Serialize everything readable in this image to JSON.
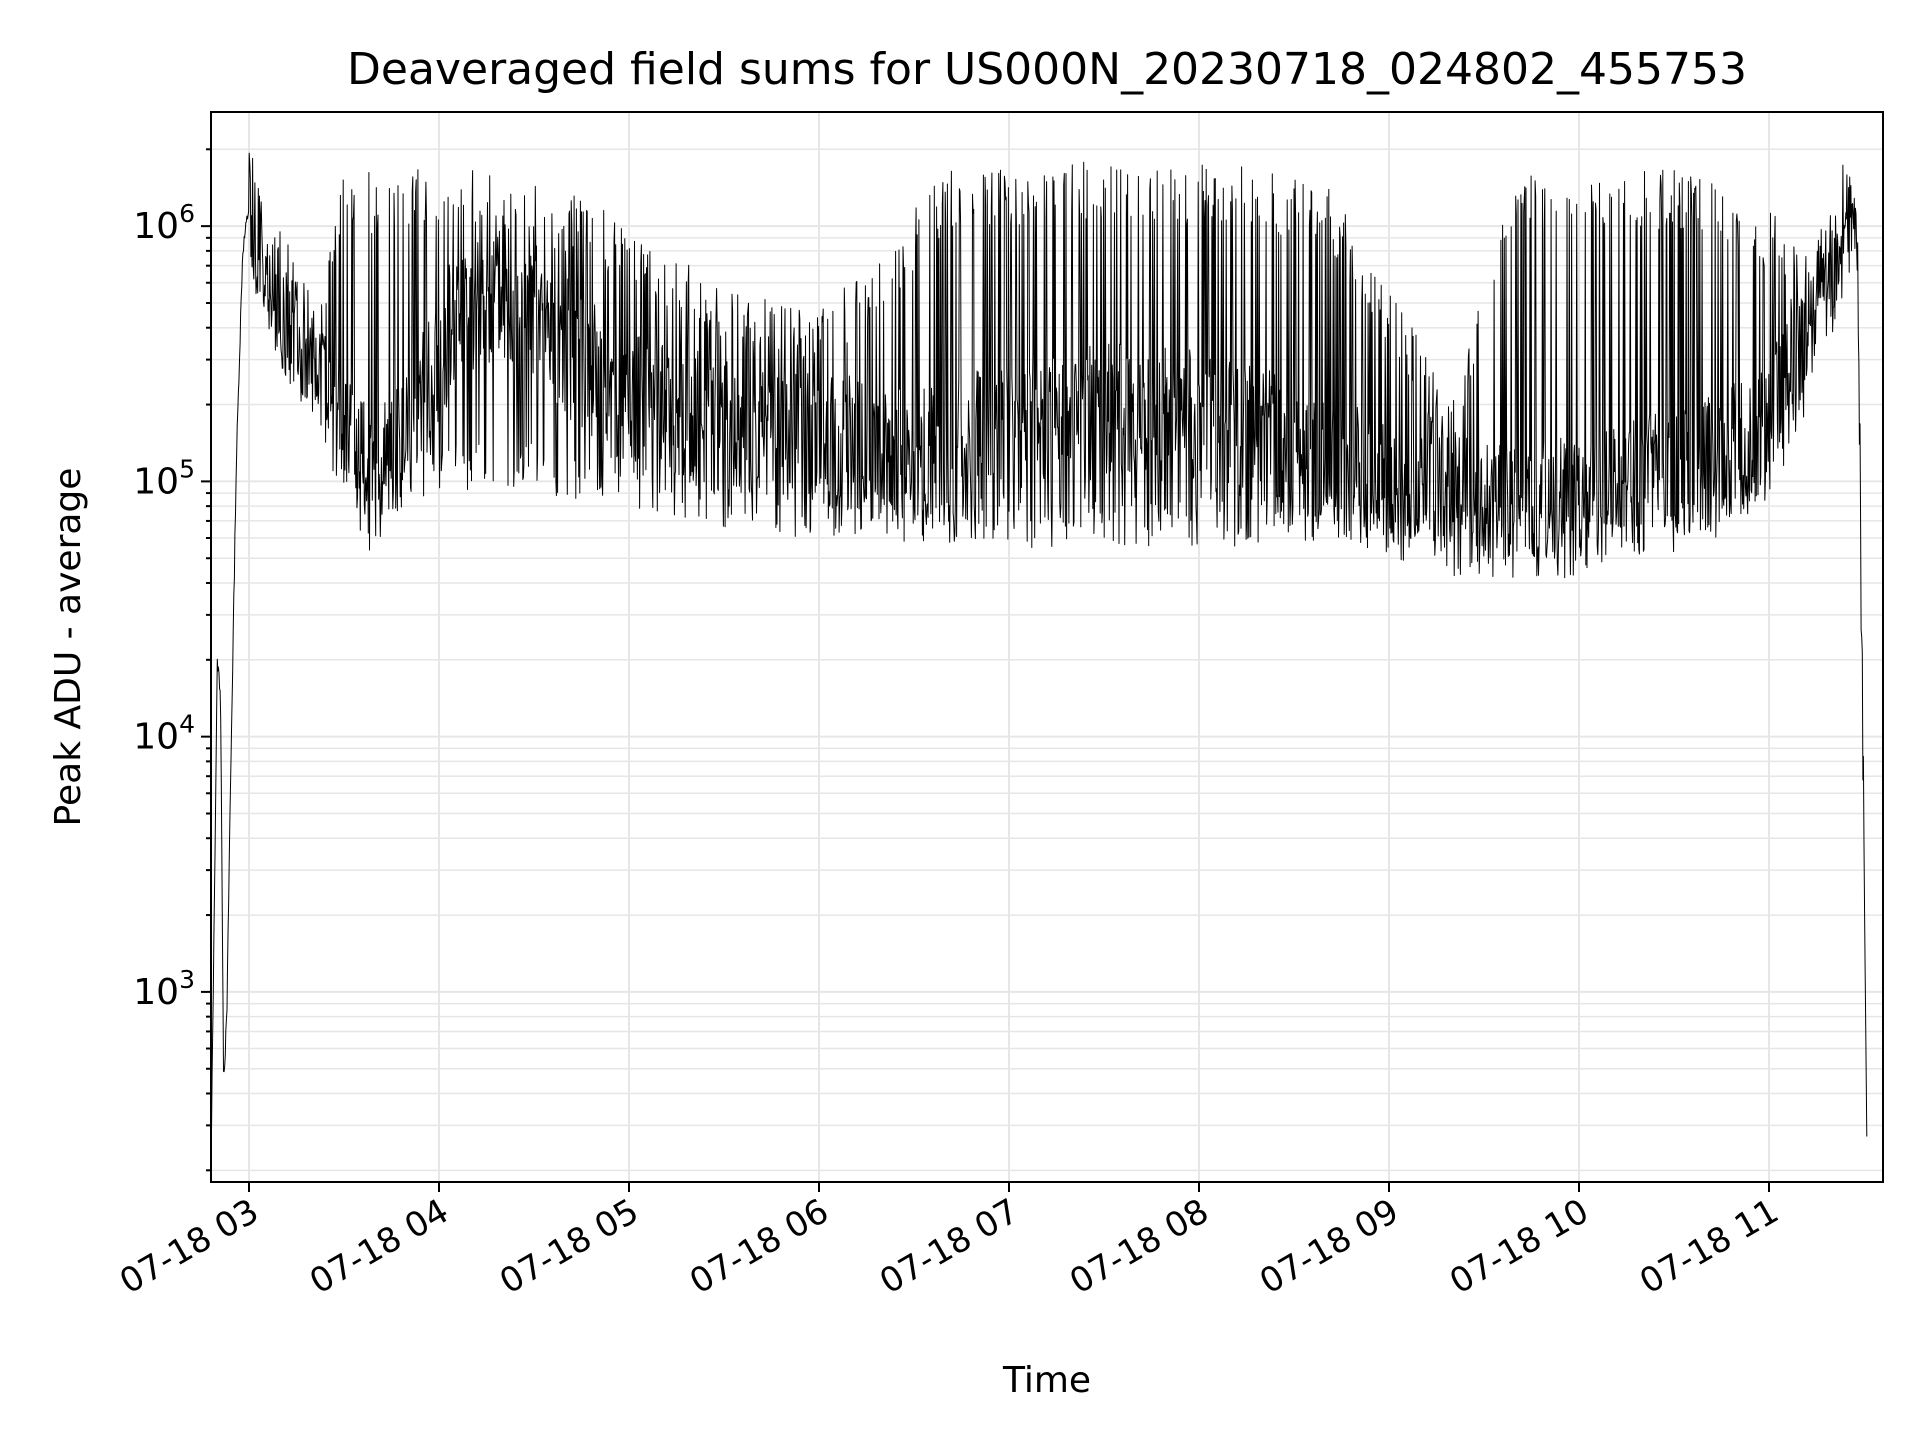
{
  "chart_data": {
    "type": "line",
    "title": "Deaveraged field sums for US000N_20230718_024802_455753",
    "xlabel": "Time",
    "ylabel": "Peak ADU - average",
    "yscale": "log",
    "ylim": [
      180,
      2800000
    ],
    "xlim": [
      "2023-07-18 02:48",
      "2023-07-18 11:36"
    ],
    "grid": true,
    "line_color": "#000000",
    "x_ticks": [
      {
        "time": "2023-07-18 03:00",
        "label": "07-18 03"
      },
      {
        "time": "2023-07-18 04:00",
        "label": "07-18 04"
      },
      {
        "time": "2023-07-18 05:00",
        "label": "07-18 05"
      },
      {
        "time": "2023-07-18 06:00",
        "label": "07-18 06"
      },
      {
        "time": "2023-07-18 07:00",
        "label": "07-18 07"
      },
      {
        "time": "2023-07-18 08:00",
        "label": "07-18 08"
      },
      {
        "time": "2023-07-18 09:00",
        "label": "07-18 09"
      },
      {
        "time": "2023-07-18 10:00",
        "label": "07-18 10"
      },
      {
        "time": "2023-07-18 11:00",
        "label": "07-18 11"
      }
    ],
    "y_ticks": [
      {
        "value": 1000,
        "base": "10",
        "exp": "3"
      },
      {
        "value": 10000,
        "base": "10",
        "exp": "4"
      },
      {
        "value": 100000,
        "base": "10",
        "exp": "5"
      },
      {
        "value": 1000000,
        "base": "10",
        "exp": "6"
      }
    ],
    "series": [
      {
        "x": [
          "2023-07-18 02:48",
          "2023-07-18 02:50",
          "2023-07-18 02:51",
          "2023-07-18 02:52",
          "2023-07-18 02:53",
          "2023-07-18 02:54",
          "2023-07-18 02:56",
          "2023-07-18 02:58",
          "2023-07-18 03:00",
          "2023-07-18 03:04",
          "2023-07-18 03:10",
          "2023-07-18 03:20",
          "2023-07-18 03:30",
          "2023-07-18 03:38",
          "2023-07-18 03:45",
          "2023-07-18 03:55",
          "2023-07-18 04:05",
          "2023-07-18 04:15",
          "2023-07-18 04:30",
          "2023-07-18 04:45",
          "2023-07-18 05:00",
          "2023-07-18 05:20",
          "2023-07-18 05:40",
          "2023-07-18 06:00",
          "2023-07-18 06:20",
          "2023-07-18 06:40",
          "2023-07-18 07:00",
          "2023-07-18 07:20",
          "2023-07-18 07:40",
          "2023-07-18 08:00",
          "2023-07-18 08:20",
          "2023-07-18 08:40",
          "2023-07-18 09:00",
          "2023-07-18 09:20",
          "2023-07-18 09:40",
          "2023-07-18 10:00",
          "2023-07-18 10:20",
          "2023-07-18 10:40",
          "2023-07-18 11:00",
          "2023-07-18 11:10",
          "2023-07-18 11:20",
          "2023-07-18 11:24",
          "2023-07-18 11:28",
          "2023-07-18 11:31"
        ],
        "base": [
          200,
          20000,
          15000,
          450,
          800,
          5000,
          120000,
          800000,
          1200000,
          800000,
          500000,
          320000,
          150000,
          100000,
          130000,
          220000,
          420000,
          520000,
          450000,
          300000,
          200000,
          180000,
          160000,
          150000,
          130000,
          130000,
          160000,
          190000,
          190000,
          180000,
          150000,
          120000,
          90000,
          80000,
          75000,
          80000,
          100000,
          120000,
          160000,
          300000,
          700000,
          1050000,
          1000000,
          200
        ],
        "low": [
          200,
          20000,
          15000,
          450,
          800,
          5000,
          120000,
          800000,
          1200000,
          800000,
          500000,
          300000,
          90000,
          70000,
          75000,
          80000,
          95000,
          90000,
          90000,
          85000,
          80000,
          70000,
          60000,
          60000,
          60000,
          55000,
          55000,
          55000,
          55000,
          55000,
          55000,
          55000,
          60000,
          55000,
          52000,
          48000,
          50000,
          55000,
          80000,
          200000,
          600000,
          1000000,
          900000,
          200
        ],
        "high": [
          200,
          20000,
          15000,
          450,
          800,
          5000,
          120000,
          800000,
          1200000,
          800000,
          500000,
          350000,
          1600000,
          1650000,
          1700000,
          1800000,
          1750000,
          1600000,
          1450000,
          1300000,
          1050000,
          700000,
          550000,
          500000,
          800000,
          1700000,
          1750000,
          1800000,
          1780000,
          1750000,
          1700000,
          1500000,
          600000,
          200000,
          1600000,
          1700000,
          1700000,
          1650000,
          1200000,
          800000,
          800000,
          1100000,
          1000000,
          200
        ]
      }
    ]
  }
}
